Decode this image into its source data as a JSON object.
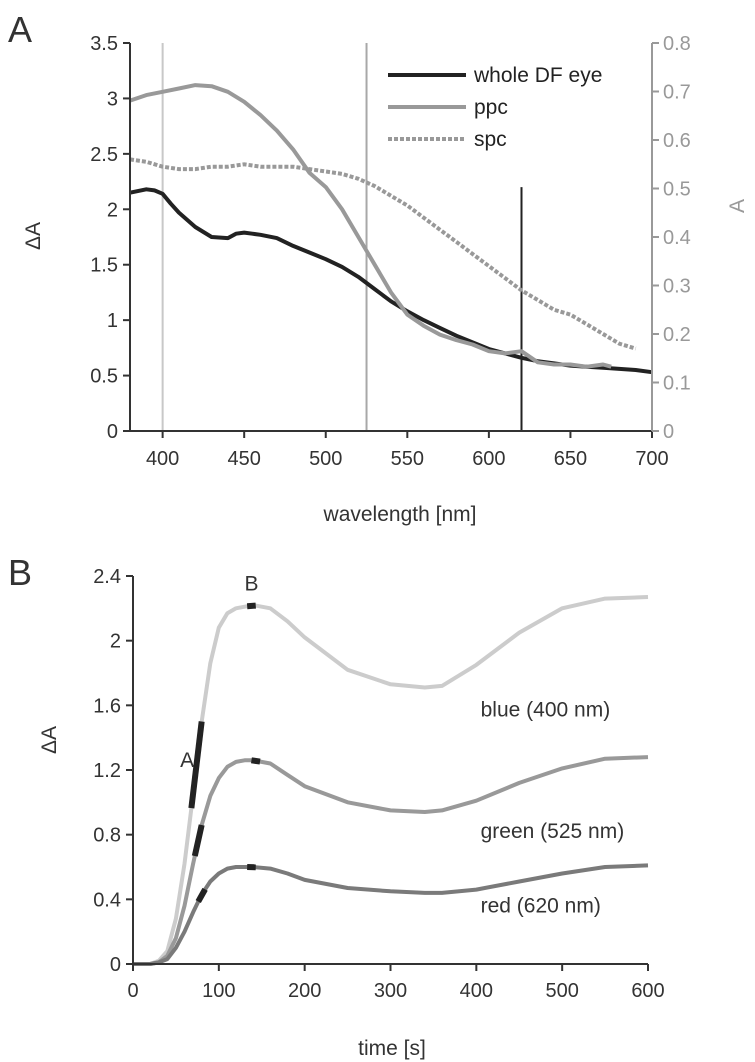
{
  "chart_data": [
    {
      "panel": "A",
      "type": "line",
      "xlabel": "wavelength [nm]",
      "ylabel": "ΔA",
      "y2label": "A",
      "xlim": [
        380,
        700
      ],
      "xticks": [
        "400",
        "450",
        "500",
        "550",
        "600",
        "650",
        "700"
      ],
      "ylim": [
        0,
        3.5
      ],
      "yticks": [
        "0",
        "0.5",
        "1",
        "1.5",
        "2",
        "2.5",
        "3",
        "3.5"
      ],
      "y2lim": [
        0,
        0.8
      ],
      "y2ticks": [
        "0",
        "0.1",
        "0.2",
        "0.3",
        "0.4",
        "0.5",
        "0.6",
        "0.7",
        "0.8"
      ],
      "legend_position": "top-right",
      "vertical_lines": [
        {
          "x": 400,
          "y_top": 3.5,
          "color": "#c8c8c8"
        },
        {
          "x": 525,
          "y_top": 3.5,
          "color": "#a8a8a8"
        },
        {
          "x": 620,
          "y_top": 2.2,
          "color": "#222222"
        }
      ],
      "series": [
        {
          "name": "whole DF eye",
          "axis": "left",
          "color": "#222222",
          "dash": "solid",
          "x": [
            380,
            390,
            395,
            400,
            405,
            410,
            420,
            430,
            440,
            445,
            450,
            455,
            460,
            470,
            480,
            490,
            500,
            510,
            520,
            530,
            540,
            550,
            560,
            570,
            580,
            590,
            600,
            610,
            620,
            630,
            640,
            650,
            660,
            670,
            680,
            690,
            700
          ],
          "y": [
            2.15,
            2.18,
            2.17,
            2.14,
            2.05,
            1.97,
            1.84,
            1.75,
            1.74,
            1.78,
            1.79,
            1.78,
            1.77,
            1.74,
            1.67,
            1.61,
            1.55,
            1.48,
            1.39,
            1.28,
            1.17,
            1.08,
            1.0,
            0.93,
            0.86,
            0.8,
            0.74,
            0.7,
            0.66,
            0.63,
            0.61,
            0.59,
            0.58,
            0.57,
            0.56,
            0.55,
            0.53
          ]
        },
        {
          "name": "ppc",
          "axis": "left",
          "color": "#999999",
          "dash": "solid",
          "x": [
            380,
            390,
            400,
            410,
            420,
            430,
            440,
            450,
            460,
            470,
            480,
            490,
            500,
            510,
            520,
            530,
            540,
            550,
            560,
            570,
            580,
            590,
            600,
            610,
            620,
            630,
            640,
            650,
            660,
            670,
            675
          ],
          "y": [
            2.98,
            3.03,
            3.06,
            3.09,
            3.12,
            3.11,
            3.06,
            2.97,
            2.85,
            2.71,
            2.54,
            2.33,
            2.2,
            2.0,
            1.75,
            1.5,
            1.25,
            1.05,
            0.95,
            0.87,
            0.82,
            0.78,
            0.72,
            0.7,
            0.72,
            0.62,
            0.6,
            0.6,
            0.58,
            0.6,
            0.58
          ]
        },
        {
          "name": "spc",
          "axis": "right",
          "color": "#999999",
          "dash": "dotted",
          "x": [
            380,
            390,
            400,
            410,
            420,
            430,
            440,
            450,
            460,
            470,
            480,
            490,
            500,
            510,
            520,
            530,
            540,
            550,
            560,
            570,
            580,
            590,
            600,
            610,
            620,
            630,
            640,
            650,
            660,
            670,
            680,
            690
          ],
          "y": [
            0.56,
            0.555,
            0.545,
            0.54,
            0.54,
            0.545,
            0.545,
            0.55,
            0.545,
            0.545,
            0.545,
            0.54,
            0.535,
            0.53,
            0.52,
            0.505,
            0.485,
            0.465,
            0.44,
            0.415,
            0.39,
            0.365,
            0.34,
            0.315,
            0.29,
            0.27,
            0.25,
            0.24,
            0.22,
            0.2,
            0.18,
            0.17
          ]
        }
      ]
    },
    {
      "panel": "B",
      "type": "line",
      "xlabel": "time [s]",
      "ylabel": "ΔA",
      "xlim": [
        0,
        600
      ],
      "xticks": [
        "0",
        "100",
        "200",
        "300",
        "400",
        "500",
        "600"
      ],
      "ylim": [
        0,
        2.4
      ],
      "yticks": [
        "0",
        "0.4",
        "0.8",
        "1.2",
        "1.6",
        "2",
        "2.4"
      ],
      "annotations": [
        {
          "text": "A",
          "x": 63,
          "y": 1.22
        },
        {
          "text": "B",
          "x": 138,
          "y": 2.31
        }
      ],
      "series": [
        {
          "name": "blue (400 nm)",
          "color": "#cccccc",
          "x": [
            0,
            20,
            30,
            40,
            50,
            60,
            70,
            80,
            90,
            100,
            110,
            120,
            130,
            140,
            160,
            180,
            200,
            250,
            300,
            340,
            360,
            400,
            450,
            500,
            550,
            600
          ],
          "y": [
            0,
            0.0,
            0.02,
            0.08,
            0.28,
            0.62,
            1.05,
            1.5,
            1.86,
            2.08,
            2.17,
            2.2,
            2.21,
            2.22,
            2.2,
            2.12,
            2.02,
            1.82,
            1.73,
            1.71,
            1.72,
            1.85,
            2.05,
            2.2,
            2.26,
            2.27
          ]
        },
        {
          "name": "green (525 nm)",
          "color": "#999999",
          "x": [
            0,
            20,
            30,
            40,
            50,
            60,
            70,
            80,
            90,
            100,
            110,
            120,
            130,
            140,
            160,
            180,
            200,
            250,
            300,
            340,
            360,
            400,
            450,
            500,
            550,
            600
          ],
          "y": [
            0,
            0.0,
            0.01,
            0.05,
            0.16,
            0.36,
            0.62,
            0.86,
            1.04,
            1.15,
            1.22,
            1.25,
            1.26,
            1.26,
            1.24,
            1.17,
            1.1,
            1.0,
            0.95,
            0.94,
            0.95,
            1.01,
            1.12,
            1.21,
            1.27,
            1.28
          ]
        },
        {
          "name": "red (620 nm)",
          "color": "#7a7a7a",
          "x": [
            0,
            20,
            30,
            40,
            50,
            60,
            70,
            80,
            90,
            100,
            110,
            120,
            130,
            140,
            160,
            180,
            200,
            250,
            300,
            340,
            360,
            400,
            450,
            500,
            550,
            600
          ],
          "y": [
            0,
            0.0,
            0.01,
            0.03,
            0.1,
            0.2,
            0.32,
            0.43,
            0.51,
            0.56,
            0.59,
            0.6,
            0.6,
            0.6,
            0.59,
            0.56,
            0.52,
            0.47,
            0.45,
            0.44,
            0.44,
            0.46,
            0.51,
            0.56,
            0.6,
            0.61
          ]
        }
      ],
      "markers": [
        {
          "series": "blue (400 nm)",
          "kind": "slope",
          "x0": 68,
          "x1": 80
        },
        {
          "series": "green (525 nm)",
          "kind": "slope",
          "x0": 72,
          "x1": 80
        },
        {
          "series": "red (620 nm)",
          "kind": "slope",
          "x0": 76,
          "x1": 84
        },
        {
          "series": "blue (400 nm)",
          "kind": "peak",
          "x0": 133,
          "x1": 143
        },
        {
          "series": "green (525 nm)",
          "kind": "peak",
          "x0": 138,
          "x1": 148
        },
        {
          "series": "red (620 nm)",
          "kind": "peak",
          "x0": 133,
          "x1": 143
        }
      ]
    }
  ]
}
